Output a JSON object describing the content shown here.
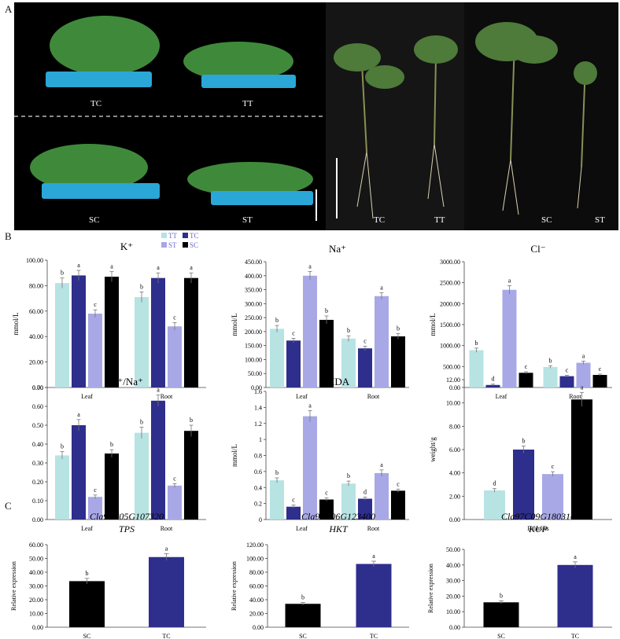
{
  "panels": {
    "a": "A",
    "b": "B",
    "c": "C"
  },
  "photos": {
    "left_labels": [
      "TC",
      "TT",
      "SC",
      "ST"
    ],
    "right_labels": [
      "TC",
      "TT",
      "SC",
      "ST"
    ]
  },
  "legend": [
    "TT",
    "TC",
    "ST",
    "SC"
  ],
  "colors": {
    "TT": "#b7e3e3",
    "TC": "#2e2e8c",
    "ST": "#a8a8e6",
    "SC": "#000000"
  },
  "chart_data": [
    {
      "id": "k",
      "type": "bar",
      "title": "K⁺",
      "ylabel": "mmol/L",
      "ylim": [
        0,
        100
      ],
      "yticks": [
        "0.00",
        "20.00",
        "40.00",
        "60.00",
        "80.00",
        "100.00"
      ],
      "categories": [
        "Leaf",
        "Root"
      ],
      "series": [
        {
          "name": "TT",
          "values": [
            82,
            71
          ],
          "err": [
            4,
            4
          ],
          "letters": [
            "b",
            "b"
          ]
        },
        {
          "name": "TC",
          "values": [
            88,
            86
          ],
          "err": [
            4,
            4
          ],
          "letters": [
            "a",
            "a"
          ]
        },
        {
          "name": "ST",
          "values": [
            58,
            48
          ],
          "err": [
            3,
            3
          ],
          "letters": [
            "c",
            "c"
          ]
        },
        {
          "name": "SC",
          "values": [
            87,
            86
          ],
          "err": [
            4,
            4
          ],
          "letters": [
            "a",
            "a"
          ]
        }
      ]
    },
    {
      "id": "na",
      "type": "bar",
      "title": "Na⁺",
      "ylabel": "mmol/L",
      "ylim": [
        0,
        450
      ],
      "yticks": [
        "0.00",
        "50.00",
        "100.00",
        "150.00",
        "200.00",
        "250.00",
        "300.00",
        "350.00",
        "400.00",
        "450.00"
      ],
      "categories": [
        "Leaf",
        "Root"
      ],
      "series": [
        {
          "name": "TT",
          "values": [
            210,
            175
          ],
          "err": [
            12,
            10
          ],
          "letters": [
            "b",
            "b"
          ]
        },
        {
          "name": "TC",
          "values": [
            168,
            140
          ],
          "err": [
            8,
            8
          ],
          "letters": [
            "c",
            "c"
          ]
        },
        {
          "name": "ST",
          "values": [
            400,
            327
          ],
          "err": [
            15,
            12
          ],
          "letters": [
            "a",
            "a"
          ]
        },
        {
          "name": "SC",
          "values": [
            242,
            183
          ],
          "err": [
            14,
            10
          ],
          "letters": [
            "b",
            "b"
          ]
        }
      ]
    },
    {
      "id": "cl",
      "type": "bar",
      "title": "Cl⁻",
      "ylabel": "mmol/L",
      "ylim": [
        0,
        3000
      ],
      "yticks": [
        "0.00",
        "500.00",
        "1000.00",
        "1500.00",
        "2000.00",
        "2500.00",
        "3000.00"
      ],
      "categories": [
        "Leaf",
        "Root"
      ],
      "series": [
        {
          "name": "TT",
          "values": [
            890,
            490
          ],
          "err": [
            50,
            30
          ],
          "letters": [
            "b",
            "b"
          ]
        },
        {
          "name": "TC",
          "values": [
            60,
            270
          ],
          "err": [
            20,
            20
          ],
          "letters": [
            "d",
            "c"
          ]
        },
        {
          "name": "ST",
          "values": [
            2330,
            590
          ],
          "err": [
            100,
            40
          ],
          "letters": [
            "a",
            "a"
          ]
        },
        {
          "name": "SC",
          "values": [
            350,
            300
          ],
          "err": [
            25,
            20
          ],
          "letters": [
            "c",
            "c"
          ]
        }
      ]
    },
    {
      "id": "kna",
      "type": "bar",
      "title": "K⁺/Na⁺",
      "ylim": [
        0,
        0.7
      ],
      "yticks": [
        "0.00",
        "0.10",
        "0.20",
        "0.30",
        "0.40",
        "0.50",
        "0.60",
        "0.70"
      ],
      "categories": [
        "Leaf",
        "Root"
      ],
      "series": [
        {
          "name": "TT",
          "values": [
            0.34,
            0.46
          ],
          "err": [
            0.02,
            0.03
          ],
          "letters": [
            "b",
            "b"
          ]
        },
        {
          "name": "TC",
          "values": [
            0.5,
            0.63
          ],
          "err": [
            0.03,
            0.03
          ],
          "letters": [
            "a",
            "a"
          ]
        },
        {
          "name": "ST",
          "values": [
            0.12,
            0.18
          ],
          "err": [
            0.01,
            0.01
          ],
          "letters": [
            "c",
            "c"
          ]
        },
        {
          "name": "SC",
          "values": [
            0.35,
            0.47
          ],
          "err": [
            0.02,
            0.03
          ],
          "letters": [
            "b",
            "b"
          ]
        }
      ]
    },
    {
      "id": "mda",
      "type": "bar",
      "title": "MDA",
      "ylabel": "mmol/L",
      "ylim": [
        0,
        1.6
      ],
      "yticks": [
        "0",
        "0.2",
        "0.4",
        "0.6",
        "0.8",
        "1",
        "1.2",
        "1.4",
        "1.6"
      ],
      "categories": [
        "Leaf",
        "Root"
      ],
      "series": [
        {
          "name": "TT",
          "values": [
            0.49,
            0.45
          ],
          "err": [
            0.03,
            0.03
          ],
          "letters": [
            "b",
            "b"
          ]
        },
        {
          "name": "TC",
          "values": [
            0.16,
            0.26
          ],
          "err": [
            0.02,
            0.02
          ],
          "letters": [
            "c",
            "d"
          ]
        },
        {
          "name": "ST",
          "values": [
            1.29,
            0.58
          ],
          "err": [
            0.07,
            0.04
          ],
          "letters": [
            "a",
            "a"
          ]
        },
        {
          "name": "SC",
          "values": [
            0.25,
            0.36
          ],
          "err": [
            0.02,
            0.02
          ],
          "letters": [
            "c",
            "c"
          ]
        }
      ]
    },
    {
      "id": "bio",
      "type": "bar",
      "ylabel": "weight/g",
      "ylim": [
        0,
        12
      ],
      "yticks": [
        "0.00",
        "2.00",
        "4.00",
        "6.00",
        "8.00",
        "10.00",
        "12.00"
      ],
      "categories": [
        "Biomass"
      ],
      "series": [
        {
          "name": "TT",
          "values": [
            2.5
          ],
          "err": [
            0.15
          ],
          "letters": [
            "d"
          ]
        },
        {
          "name": "TC",
          "values": [
            6.0
          ],
          "err": [
            0.3
          ],
          "letters": [
            "b"
          ]
        },
        {
          "name": "ST",
          "values": [
            3.9
          ],
          "err": [
            0.2
          ],
          "letters": [
            "c"
          ]
        },
        {
          "name": "SC",
          "values": [
            10.3
          ],
          "err": [
            0.6
          ],
          "letters": [
            "a"
          ]
        }
      ]
    },
    {
      "id": "tps",
      "type": "bar",
      "title": "Cla97C05G107320",
      "subtitle": "TPS",
      "ylabel": "Relative expression",
      "ylim": [
        0,
        60
      ],
      "yticks": [
        "0.00",
        "10.00",
        "20.00",
        "30.00",
        "40.00",
        "50.00",
        "60.00"
      ],
      "categories": [
        "SC",
        "TC"
      ],
      "values": [
        33.5,
        51
      ],
      "err": [
        2,
        2.5
      ],
      "letters": [
        "b",
        "a"
      ],
      "colors": [
        "#000000",
        "#2e2e8c"
      ]
    },
    {
      "id": "hkt",
      "type": "bar",
      "title": "Cla97C06G123400",
      "subtitle": "HKT",
      "ylabel": "Relative expression",
      "ylim": [
        0,
        120
      ],
      "yticks": [
        "0.00",
        "20.00",
        "40.00",
        "60.00",
        "80.00",
        "100.00",
        "120.00"
      ],
      "categories": [
        "SC",
        "TC"
      ],
      "values": [
        34,
        92
      ],
      "err": [
        2,
        4
      ],
      "letters": [
        "b",
        "a"
      ],
      "colors": [
        "#000000",
        "#2e2e8c"
      ]
    },
    {
      "id": "kup",
      "type": "bar",
      "title": "Cla97C09G180310",
      "subtitle": "KUP",
      "ylabel": "Relative expression",
      "ylim": [
        0,
        50
      ],
      "yticks": [
        "0.00",
        "10.00",
        "20.00",
        "30.00",
        "40.00",
        "50.00"
      ],
      "categories": [
        "SC",
        "TC"
      ],
      "values": [
        16,
        40
      ],
      "err": [
        1,
        2
      ],
      "letters": [
        "b",
        "a"
      ],
      "colors": [
        "#000000",
        "#2e2e8c"
      ]
    }
  ]
}
